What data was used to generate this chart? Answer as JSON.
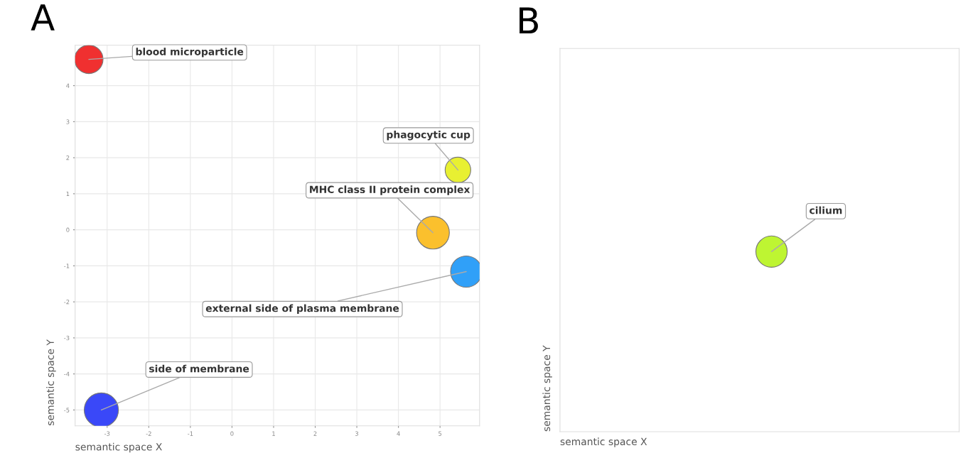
{
  "chart_data": [
    {
      "type": "bubble",
      "title": "A",
      "xlabel": "semantic space X",
      "ylabel": "semantic space Y",
      "xlim": [
        -3.77,
        5.95
      ],
      "ylim": [
        -5.44,
        5.12
      ],
      "xticks": [
        -3,
        -2,
        -1,
        0,
        1,
        2,
        3,
        4,
        5
      ],
      "yticks": [
        -5,
        -4,
        -3,
        -2,
        -1,
        0,
        1,
        2,
        3,
        4
      ],
      "grid": true,
      "series": [
        {
          "name": "blood microparticle",
          "color": "#f03030",
          "x": [
            -3.44
          ],
          "values": [
            4.73
          ],
          "sizes": [
            0.69
          ]
        },
        {
          "name": "phagocytic cup",
          "color": "#e8f032",
          "x": [
            5.43
          ],
          "values": [
            1.66
          ],
          "sizes": [
            0.56
          ]
        },
        {
          "name": "MHC class II protein complex",
          "color": "#fbc02d",
          "x": [
            4.83
          ],
          "values": [
            -0.08
          ],
          "sizes": [
            0.92
          ]
        },
        {
          "name": "external side of plasma membrane",
          "color": "#30a0f8",
          "x": [
            5.63
          ],
          "values": [
            -1.16
          ],
          "sizes": [
            0.84
          ]
        },
        {
          "name": "side of membrane",
          "color": "#3a48f8",
          "x": [
            -3.14
          ],
          "values": [
            -5.0
          ],
          "sizes": [
            1
          ]
        }
      ]
    },
    {
      "type": "other",
      "title": "B",
      "xlabel": "semantic space X",
      "ylabel": "semantic space Y",
      "annotations": [
        "cilium"
      ]
    }
  ]
}
